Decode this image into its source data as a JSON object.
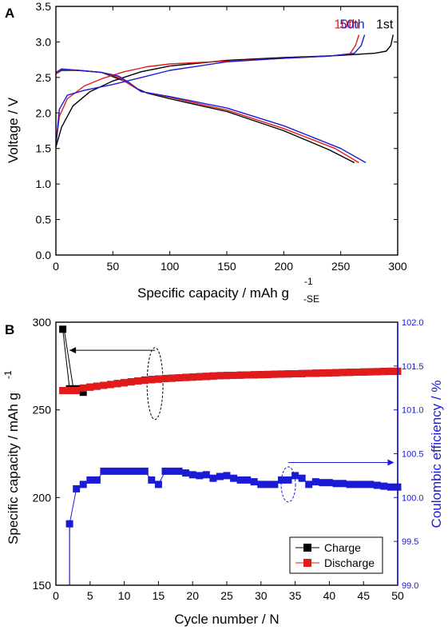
{
  "panels": [
    {
      "label": "A"
    },
    {
      "label": "B"
    }
  ],
  "chart_data": [
    {
      "type": "line",
      "xlabel": "Specific capacity / mAh g",
      "xlabel_sup": "-1",
      "xlabel_sub": "-SE",
      "ylabel": "Voltage / V",
      "xlim": [
        0,
        300
      ],
      "ylim": [
        0.0,
        3.5
      ],
      "xticks": [
        0,
        50,
        100,
        150,
        200,
        250,
        300
      ],
      "yticks": [
        0.0,
        0.5,
        1.0,
        1.5,
        2.0,
        2.5,
        3.0,
        3.5
      ],
      "grid": false,
      "series": [
        {
          "name": "1st",
          "color": "#000000",
          "label_color": "#000000",
          "charge": {
            "x": [
              0,
              5,
              15,
              30,
              50,
              75,
              100,
              150,
              200,
              250,
              280,
              290,
              294,
              296
            ],
            "y": [
              1.52,
              1.8,
              2.1,
              2.3,
              2.45,
              2.58,
              2.66,
              2.74,
              2.78,
              2.81,
              2.84,
              2.87,
              2.95,
              3.1
            ]
          },
          "discharge": {
            "x": [
              0,
              5,
              20,
              40,
              60,
              70,
              80,
              100,
              150,
              200,
              240,
              262
            ],
            "y": [
              2.55,
              2.6,
              2.6,
              2.57,
              2.45,
              2.35,
              2.28,
              2.2,
              2.02,
              1.75,
              1.48,
              1.3
            ]
          }
        },
        {
          "name": "10th",
          "color": "#e11b1b",
          "label_color": "#e11b1b",
          "charge": {
            "x": [
              0,
              3,
              10,
              25,
              40,
              60,
              80,
              100,
              150,
              200,
              240,
              258,
              263,
              266
            ],
            "y": [
              1.55,
              1.95,
              2.2,
              2.38,
              2.48,
              2.58,
              2.65,
              2.69,
              2.73,
              2.77,
              2.8,
              2.83,
              2.95,
              3.1
            ]
          },
          "discharge": {
            "x": [
              0,
              5,
              20,
              40,
              55,
              65,
              75,
              100,
              150,
              200,
              245,
              266
            ],
            "y": [
              2.55,
              2.61,
              2.6,
              2.57,
              2.5,
              2.4,
              2.3,
              2.22,
              2.04,
              1.78,
              1.5,
              1.3
            ]
          }
        },
        {
          "name": "50th",
          "color": "#1b1bd6",
          "label_color": "#1b1bd6",
          "charge": {
            "x": [
              0,
              3,
              10,
              25,
              50,
              75,
              100,
              150,
              200,
              240,
              262,
              268,
              271
            ],
            "y": [
              1.55,
              2.05,
              2.25,
              2.32,
              2.4,
              2.5,
              2.6,
              2.72,
              2.77,
              2.8,
              2.84,
              2.95,
              3.1
            ]
          },
          "discharge": {
            "x": [
              0,
              5,
              20,
              40,
              55,
              65,
              75,
              100,
              150,
              200,
              250,
              272
            ],
            "y": [
              2.57,
              2.62,
              2.6,
              2.57,
              2.52,
              2.42,
              2.3,
              2.23,
              2.07,
              1.82,
              1.5,
              1.3
            ]
          }
        }
      ]
    },
    {
      "type": "scatter",
      "xlabel": "Cycle number / N",
      "ylabel_left": "Specific capacity / mAh g",
      "ylabel_left_sup": "-1",
      "ylabel_right": "Coulombic efficiency / %",
      "xlim": [
        0,
        50
      ],
      "ylim_left": [
        150,
        300
      ],
      "ylim_right": [
        99.0,
        102.0
      ],
      "xticks": [
        0,
        5,
        10,
        15,
        20,
        25,
        30,
        35,
        40,
        45,
        50
      ],
      "yticks_left": [
        150,
        200,
        250,
        300
      ],
      "yticks_right": [
        99.0,
        99.5,
        100.0,
        100.5,
        101.0,
        101.5,
        102.0
      ],
      "legend_position": "bottom-right",
      "series": [
        {
          "name": "Charge",
          "axis": "left",
          "color": "#000000",
          "x": [
            1,
            2,
            3,
            4,
            5,
            6,
            7,
            8,
            9,
            10,
            11,
            12,
            13,
            14,
            15,
            16,
            17,
            18,
            19,
            20,
            21,
            22,
            23,
            24,
            25,
            26,
            27,
            28,
            29,
            30,
            31,
            32,
            33,
            34,
            35,
            36,
            37,
            38,
            39,
            40,
            41,
            42,
            43,
            44,
            45,
            46,
            47,
            48,
            49,
            50
          ],
          "y": [
            296,
            262,
            262,
            260,
            263,
            263.5,
            264,
            264.5,
            265,
            265.5,
            266,
            266.5,
            267,
            267.3,
            267.6,
            267.9,
            268.1,
            268.3,
            268.5,
            268.7,
            268.9,
            269.1,
            269.3,
            269.5,
            269.6,
            269.7,
            269.8,
            269.9,
            270,
            270.1,
            270.2,
            270.3,
            270.4,
            270.5,
            270.6,
            270.7,
            270.8,
            270.9,
            271,
            271.1,
            271.2,
            271.3,
            271.4,
            271.5,
            271.6,
            271.7,
            271.8,
            271.9,
            272,
            272
          ]
        },
        {
          "name": "Discharge",
          "axis": "left",
          "color": "#e11b1b",
          "x": [
            1,
            2,
            3,
            4,
            5,
            6,
            7,
            8,
            9,
            10,
            11,
            12,
            13,
            14,
            15,
            16,
            17,
            18,
            19,
            20,
            21,
            22,
            23,
            24,
            25,
            26,
            27,
            28,
            29,
            30,
            31,
            32,
            33,
            34,
            35,
            36,
            37,
            38,
            39,
            40,
            41,
            42,
            43,
            44,
            45,
            46,
            47,
            48,
            49,
            50
          ],
          "y": [
            261,
            261,
            261,
            262.5,
            263,
            263.5,
            264,
            264.5,
            265,
            265.5,
            266,
            266.5,
            266.8,
            267.2,
            267.5,
            267.8,
            268,
            268.3,
            268.5,
            268.7,
            268.9,
            269.1,
            269.3,
            269.5,
            269.6,
            269.7,
            269.8,
            269.9,
            270,
            270.1,
            270.2,
            270.3,
            270.4,
            270.5,
            270.6,
            270.7,
            270.8,
            270.9,
            271,
            271.1,
            271.2,
            271.3,
            271.4,
            271.5,
            271.6,
            271.7,
            271.8,
            271.9,
            272,
            272
          ]
        },
        {
          "name": "",
          "axis": "right",
          "color": "#1b1bd6",
          "x": [
            2,
            3,
            4,
            5,
            6,
            7,
            8,
            9,
            10,
            11,
            12,
            13,
            14,
            15,
            16,
            17,
            18,
            19,
            20,
            21,
            22,
            23,
            24,
            25,
            26,
            27,
            28,
            29,
            30,
            31,
            32,
            33,
            34,
            35,
            36,
            37,
            38,
            39,
            40,
            41,
            42,
            43,
            44,
            45,
            46,
            47,
            48,
            49,
            50
          ],
          "y": [
            99.7,
            100.1,
            100.15,
            100.2,
            100.2,
            100.3,
            100.3,
            100.3,
            100.3,
            100.3,
            100.3,
            100.3,
            100.2,
            100.15,
            100.3,
            100.3,
            100.3,
            100.28,
            100.26,
            100.25,
            100.26,
            100.22,
            100.24,
            100.25,
            100.22,
            100.2,
            100.2,
            100.18,
            100.15,
            100.15,
            100.15,
            100.2,
            100.2,
            100.25,
            100.22,
            100.15,
            100.18,
            100.17,
            100.17,
            100.16,
            100.16,
            100.15,
            100.15,
            100.15,
            100.15,
            100.14,
            100.13,
            100.12,
            100.12
          ]
        }
      ]
    }
  ]
}
